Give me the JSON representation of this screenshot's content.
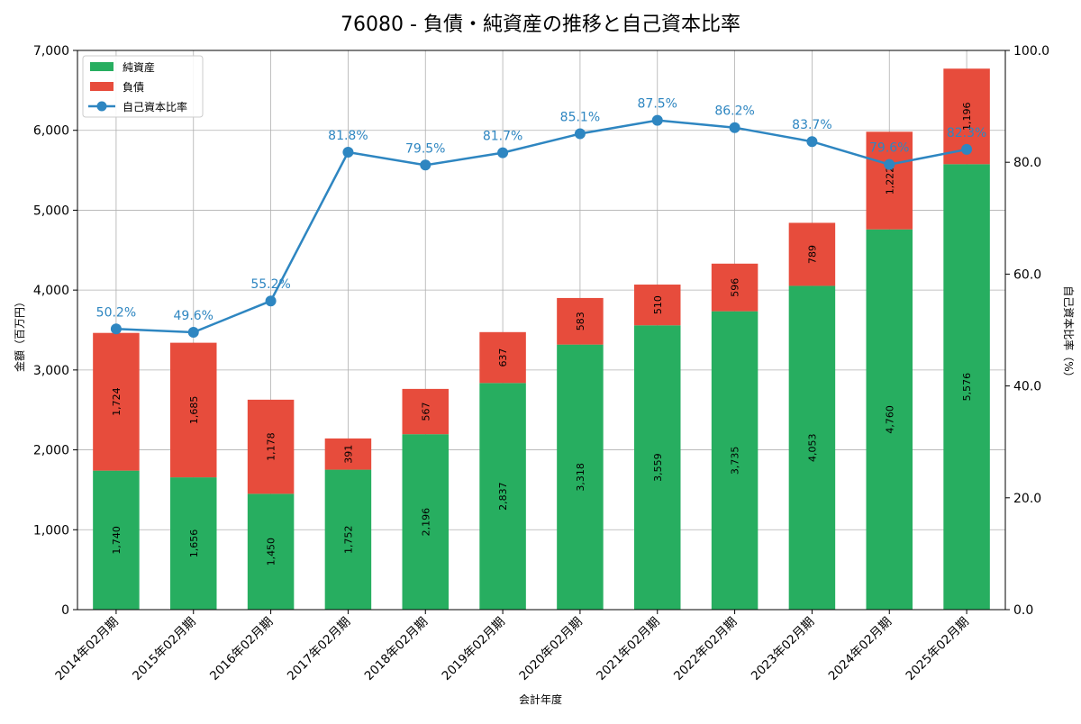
{
  "chart_data": {
    "type": "bar",
    "title": "76080 - 負債・純資産の推移と自己資本比率",
    "xlabel": "会計年度",
    "ylabel": "金額（百万円）",
    "y2label": "自己資本比率（%）",
    "ylim": [
      0,
      7000
    ],
    "y2lim": [
      0,
      100
    ],
    "yticks": [
      "0",
      "1,000",
      "2,000",
      "3,000",
      "4,000",
      "5,000",
      "6,000",
      "7,000"
    ],
    "y2ticks": [
      "0.0",
      "20.0",
      "40.0",
      "60.0",
      "80.0",
      "100.0"
    ],
    "categories": [
      "2014年02月期",
      "2015年02月期",
      "2016年02月期",
      "2017年02月期",
      "2018年02月期",
      "2019年02月期",
      "2020年02月期",
      "2021年02月期",
      "2022年02月期",
      "2023年02月期",
      "2024年02月期",
      "2025年02月期"
    ],
    "series": [
      {
        "name": "純資産",
        "kind": "bar",
        "color": "#27ae60",
        "values": [
          1740,
          1656,
          1450,
          1752,
          2196,
          2837,
          3318,
          3559,
          3735,
          4053,
          4760,
          5576
        ],
        "labels": [
          "1,740",
          "1,656",
          "1,450",
          "1,752",
          "2,196",
          "2,837",
          "3,318",
          "3,559",
          "3,735",
          "4,053",
          "4,760",
          "5,576"
        ]
      },
      {
        "name": "負債",
        "kind": "bar",
        "color": "#e74c3c",
        "values": [
          1724,
          1685,
          1178,
          391,
          567,
          637,
          583,
          510,
          596,
          789,
          1222,
          1196
        ],
        "labels": [
          "1,724",
          "1,685",
          "1,178",
          "391",
          "567",
          "637",
          "583",
          "510",
          "596",
          "789",
          "1,222",
          "1,196"
        ]
      },
      {
        "name": "自己資本比率",
        "kind": "line",
        "axis": "right",
        "color": "#2e86c1",
        "values": [
          50.2,
          49.6,
          55.2,
          81.8,
          79.5,
          81.7,
          85.1,
          87.5,
          86.2,
          83.7,
          79.6,
          82.3
        ],
        "labels": [
          "50.2%",
          "49.6%",
          "55.2%",
          "81.8%",
          "79.5%",
          "81.7%",
          "85.1%",
          "87.5%",
          "86.2%",
          "83.7%",
          "79.6%",
          "82.3%"
        ]
      }
    ],
    "legend": "top-left",
    "grid": true
  }
}
